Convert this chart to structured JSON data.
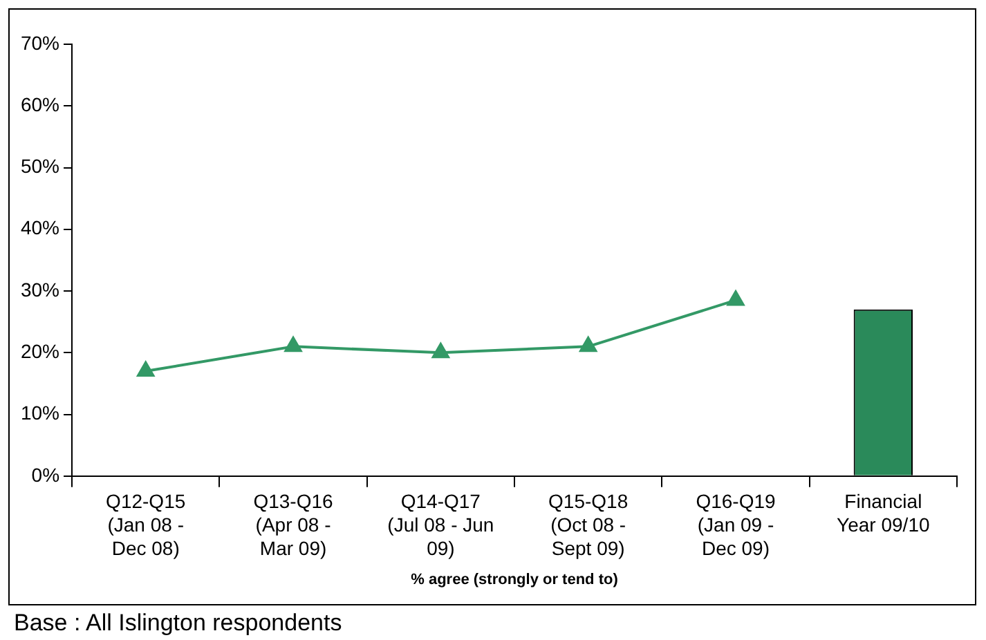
{
  "chart_data": {
    "type": "line",
    "categories": [
      "Q12-Q15\n(Jan 08 -\nDec 08)",
      "Q13-Q16\n(Apr 08 -\nMar 09)",
      "Q14-Q17\n(Jul 08 - Jun\n09)",
      "Q15-Q18\n(Oct 08 -\nSept 09)",
      "Q16-Q19\n(Jan 09 -\nDec 09)",
      "Financial\nYear 09/10"
    ],
    "series": [
      {
        "color": "#339966",
        "values": [
          17,
          21,
          20,
          21,
          28.5,
          null
        ]
      },
      {
        "type": "bar",
        "color": "#2a8a5a",
        "values": [
          null,
          null,
          null,
          null,
          null,
          27
        ]
      }
    ],
    "xlabel": "% agree (strongly or tend to)",
    "ylim": [
      0,
      70
    ],
    "yticks": [
      {
        "value": 0,
        "label": "0%"
      },
      {
        "value": 10,
        "label": "10%"
      },
      {
        "value": 20,
        "label": "20%"
      },
      {
        "value": 30,
        "label": "30%"
      },
      {
        "value": 40,
        "label": "40%"
      },
      {
        "value": 50,
        "label": "50%"
      },
      {
        "value": 60,
        "label": "60%"
      },
      {
        "value": 70,
        "label": "70%"
      }
    ],
    "grid": false,
    "legend": false,
    "marker": "triangle",
    "line_style": "solid",
    "annotations": [
      "Base : All Islington respondents"
    ]
  }
}
